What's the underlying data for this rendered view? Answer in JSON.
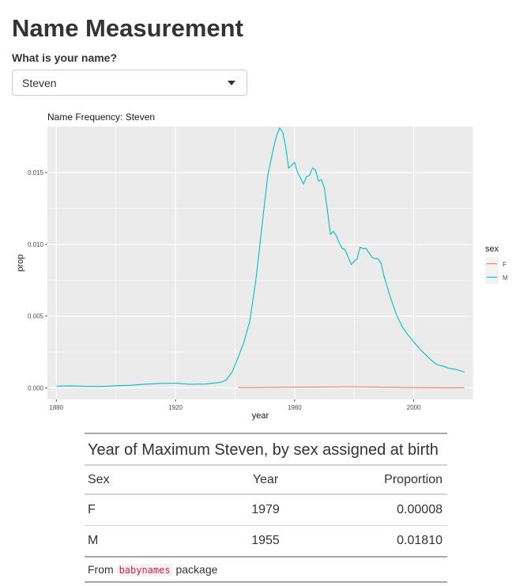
{
  "page": {
    "title": "Name Measurement"
  },
  "input": {
    "label": "What is your name?",
    "value": "Steven"
  },
  "chart_data": {
    "type": "line",
    "title": "Name Frequency: Steven",
    "xlabel": "year",
    "ylabel": "prop",
    "xlim": [
      1877,
      2020
    ],
    "ylim": [
      -0.0008,
      0.0182
    ],
    "x_ticks": [
      1880,
      1920,
      1960,
      2000
    ],
    "y_ticks": [
      0.0,
      0.005,
      0.01,
      0.015
    ],
    "y_tick_labels": [
      "0.000",
      "0.005",
      "0.010",
      "0.015"
    ],
    "legend": {
      "title": "sex",
      "position": "right"
    },
    "grid": true,
    "colors": {
      "F": "#F8766D",
      "M": "#00BFC4",
      "panel": "#EBEBEB",
      "grid": "#FFFFFF"
    },
    "series": [
      {
        "name": "F",
        "x": [
          1941,
          1950,
          1960,
          1970,
          1979,
          1990,
          2000,
          2010,
          2017
        ],
        "values": [
          2e-05,
          3e-05,
          5e-05,
          6e-05,
          8e-05,
          4e-05,
          2e-05,
          1e-05,
          1e-05
        ]
      },
      {
        "name": "M",
        "x": [
          1880,
          1885,
          1890,
          1895,
          1900,
          1905,
          1910,
          1915,
          1920,
          1925,
          1930,
          1935,
          1937,
          1939,
          1941,
          1943,
          1945,
          1947,
          1949,
          1951,
          1953,
          1954,
          1955,
          1956,
          1957,
          1958,
          1959,
          1960,
          1961,
          1962,
          1963,
          1964,
          1965,
          1966,
          1967,
          1968,
          1969,
          1970,
          1971,
          1972,
          1973,
          1974,
          1975,
          1976,
          1977,
          1978,
          1979,
          1980,
          1981,
          1982,
          1983,
          1984,
          1985,
          1986,
          1987,
          1988,
          1989,
          1990,
          1992,
          1994,
          1996,
          1998,
          2000,
          2002,
          2004,
          2006,
          2008,
          2010,
          2012,
          2014,
          2017
        ],
        "values": [
          0.00012,
          0.00014,
          0.00011,
          0.0001,
          0.00015,
          0.00018,
          0.00026,
          0.00031,
          0.00033,
          0.00025,
          0.00027,
          0.00038,
          0.00055,
          0.0011,
          0.0021,
          0.0032,
          0.0047,
          0.0075,
          0.0112,
          0.0148,
          0.0168,
          0.0176,
          0.0181,
          0.0178,
          0.0168,
          0.0153,
          0.0155,
          0.0157,
          0.015,
          0.0146,
          0.0142,
          0.0147,
          0.0148,
          0.0153,
          0.0152,
          0.0144,
          0.0145,
          0.0139,
          0.0124,
          0.0107,
          0.0109,
          0.0106,
          0.0101,
          0.0097,
          0.0096,
          0.0091,
          0.0086,
          0.0088,
          0.009,
          0.0098,
          0.0097,
          0.0097,
          0.0094,
          0.0091,
          0.009,
          0.009,
          0.0087,
          0.0078,
          0.0064,
          0.0052,
          0.0043,
          0.0037,
          0.0032,
          0.0027,
          0.0023,
          0.0019,
          0.0016,
          0.0015,
          0.00135,
          0.0013,
          0.0011
        ]
      }
    ]
  },
  "table": {
    "title": "Year of Maximum Steven, by sex assigned at birth",
    "columns": [
      "Sex",
      "Year",
      "Proportion"
    ],
    "rows": [
      [
        "F",
        "1979",
        "0.00008"
      ],
      [
        "M",
        "1955",
        "0.01810"
      ]
    ],
    "source_prefix": "From",
    "source_code": "babynames",
    "source_suffix": "package"
  }
}
